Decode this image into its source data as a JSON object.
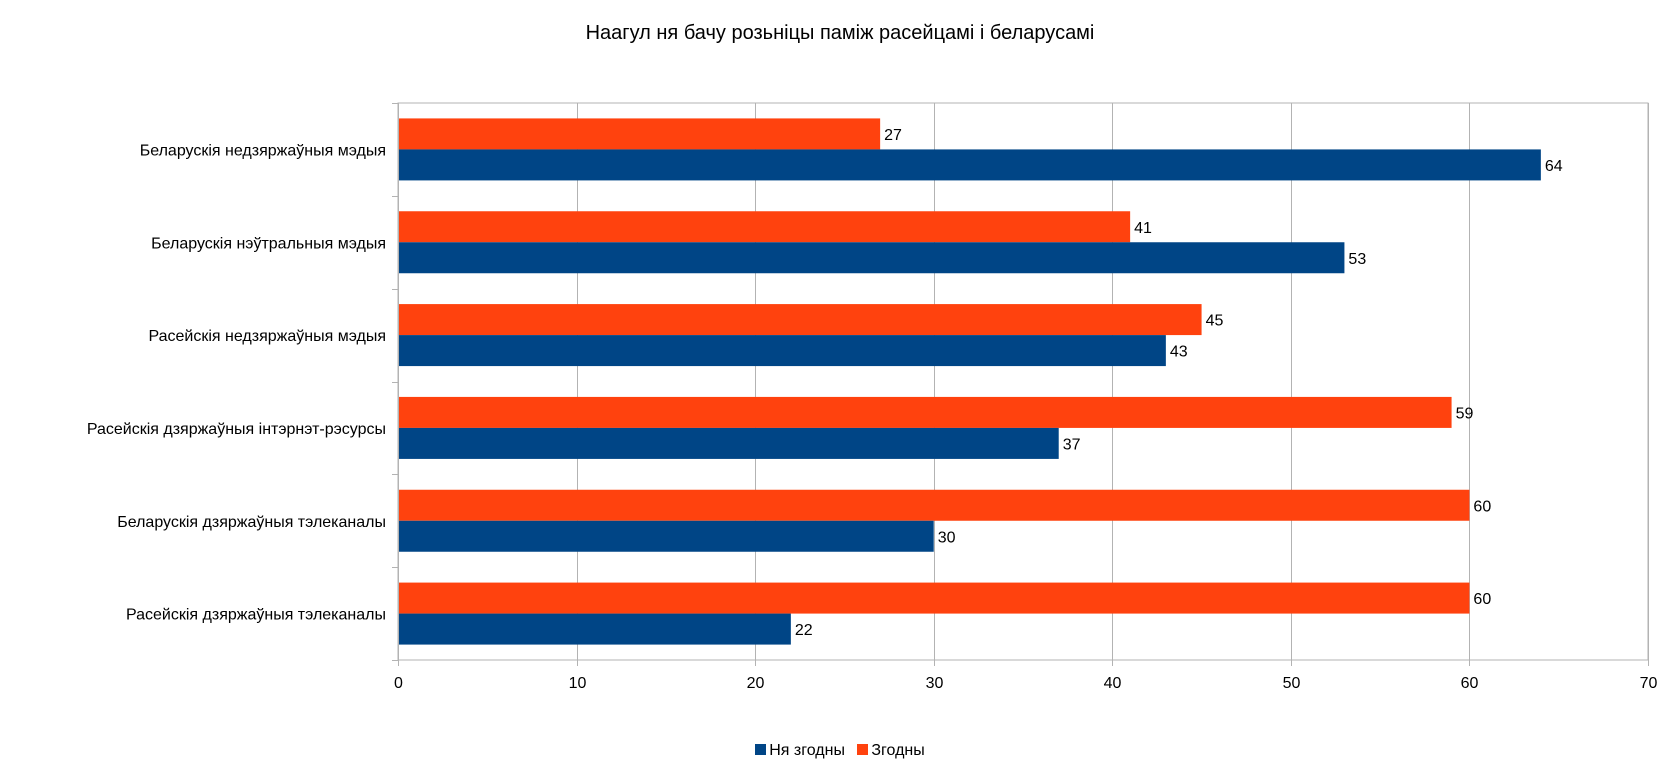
{
  "chart_data": {
    "type": "bar",
    "orientation": "horizontal",
    "title": "Наагул ня бачу розьніцы паміж расейцамі і беларусамі",
    "categories": [
      "Беларускія недзяржаўныя мэдыя",
      "Беларускія нэўтральныя мэдыя",
      "Расейскія недзяржаўныя мэдыя",
      "Расейскія дзяржаўныя інтэрнэт-рэсурсы",
      "Беларускія дзяржаўныя тэлеканалы",
      "Расейскія дзяржаўныя тэлеканалы"
    ],
    "series": [
      {
        "name": "Згодны",
        "color": "#ff420e",
        "values": [
          27,
          41,
          45,
          59,
          60,
          60
        ]
      },
      {
        "name": "Ня згодны",
        "color": "#004586",
        "values": [
          64,
          53,
          43,
          37,
          30,
          22
        ]
      }
    ],
    "xlim": [
      0,
      70
    ],
    "xticks": [
      0,
      10,
      20,
      30,
      40,
      50,
      60,
      70
    ],
    "xlabel": "",
    "ylabel": "",
    "grid": true,
    "legend": {
      "position": "bottom",
      "items": [
        {
          "name": "Ня згодны",
          "color": "#004586"
        },
        {
          "name": "Згодны",
          "color": "#ff420e"
        }
      ]
    }
  }
}
